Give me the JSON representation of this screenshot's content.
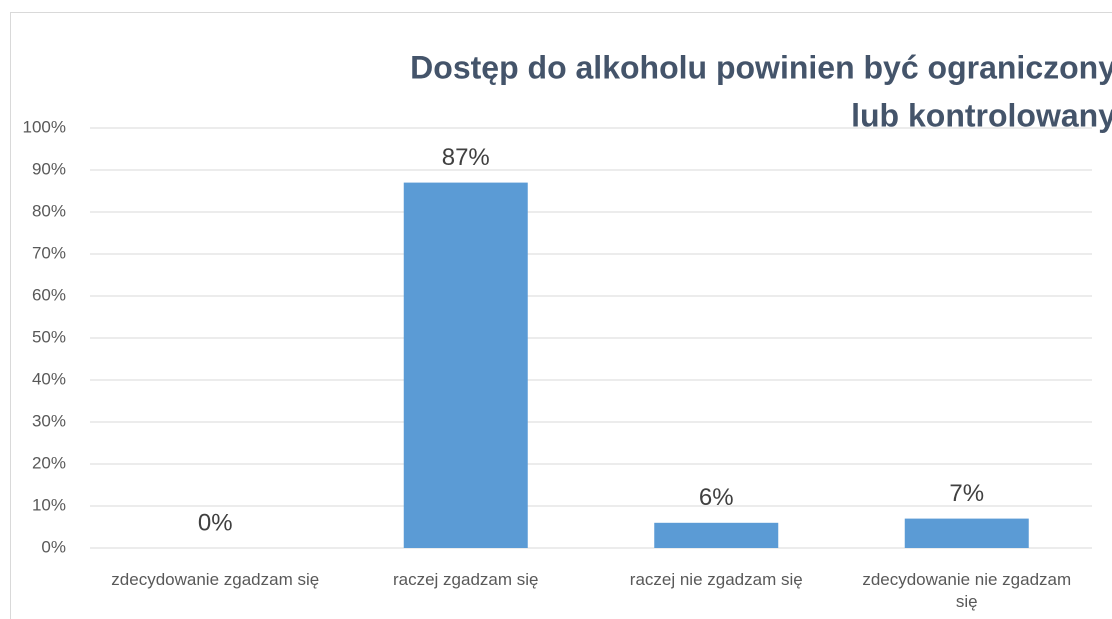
{
  "chart_data": {
    "type": "bar",
    "title": [
      "Dostęp do alkoholu powinien być ograniczony",
      "lub kontrolowany"
    ],
    "categories": [
      "zdecydowanie zgadzam się",
      "raczej zgadzam się",
      "raczej nie zgadzam się",
      "zdecydowanie nie zgadzam się"
    ],
    "values": [
      0,
      87,
      6,
      7
    ],
    "value_labels": [
      "0%",
      "87%",
      "6%",
      "7%"
    ],
    "color": "#5b9bd5",
    "ylim": [
      0,
      100
    ],
    "yticks": [
      {
        "value": 0,
        "label": "0%"
      },
      {
        "value": 10,
        "label": "10%"
      },
      {
        "value": 20,
        "label": "20%"
      },
      {
        "value": 30,
        "label": "30%"
      },
      {
        "value": 40,
        "label": "40%"
      },
      {
        "value": 50,
        "label": "50%"
      },
      {
        "value": 60,
        "label": "60%"
      },
      {
        "value": 70,
        "label": "70%"
      },
      {
        "value": 80,
        "label": "80%"
      },
      {
        "value": 90,
        "label": "90%"
      },
      {
        "value": 100,
        "label": "100%"
      }
    ],
    "grid": true
  }
}
